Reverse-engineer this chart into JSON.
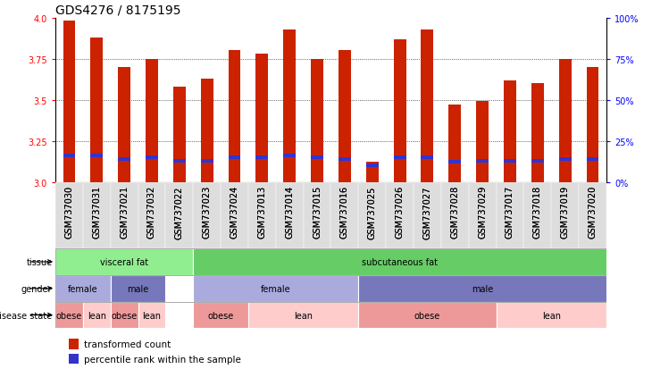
{
  "title": "GDS4276 / 8175195",
  "samples": [
    "GSM737030",
    "GSM737031",
    "GSM737021",
    "GSM737032",
    "GSM737022",
    "GSM737023",
    "GSM737024",
    "GSM737013",
    "GSM737014",
    "GSM737015",
    "GSM737016",
    "GSM737025",
    "GSM737026",
    "GSM737027",
    "GSM737028",
    "GSM737029",
    "GSM737017",
    "GSM737018",
    "GSM737019",
    "GSM737020"
  ],
  "bar_heights": [
    3.98,
    3.88,
    3.7,
    3.75,
    3.58,
    3.63,
    3.8,
    3.78,
    3.93,
    3.75,
    3.8,
    3.12,
    3.87,
    3.93,
    3.47,
    3.49,
    3.62,
    3.6,
    3.75,
    3.7
  ],
  "blue_markers": [
    3.16,
    3.16,
    3.14,
    3.15,
    3.13,
    3.13,
    3.15,
    3.15,
    3.16,
    3.15,
    3.14,
    3.1,
    3.15,
    3.15,
    3.12,
    3.13,
    3.13,
    3.13,
    3.14,
    3.14
  ],
  "ymin": 3.0,
  "ymax": 4.0,
  "yticks": [
    3.0,
    3.25,
    3.5,
    3.75,
    4.0
  ],
  "right_yticks": [
    0,
    25,
    50,
    75,
    100
  ],
  "right_yticklabels": [
    "0%",
    "25%",
    "50%",
    "75%",
    "100%"
  ],
  "bar_color": "#cc2200",
  "blue_color": "#3333cc",
  "bar_width": 0.45,
  "tissue_row": {
    "groups": [
      {
        "label": "visceral fat",
        "start": 0,
        "end": 4,
        "color": "#90ee90"
      },
      {
        "label": "subcutaneous fat",
        "start": 5,
        "end": 19,
        "color": "#66cc66"
      }
    ]
  },
  "gender_row": {
    "groups": [
      {
        "label": "female",
        "start": 0,
        "end": 1,
        "color": "#aaaadd"
      },
      {
        "label": "male",
        "start": 2,
        "end": 3,
        "color": "#7777bb"
      },
      {
        "label": "female",
        "start": 5,
        "end": 10,
        "color": "#aaaadd"
      },
      {
        "label": "male",
        "start": 11,
        "end": 19,
        "color": "#7777bb"
      }
    ]
  },
  "disease_row": {
    "groups": [
      {
        "label": "obese",
        "start": 0,
        "end": 0,
        "color": "#ee9999"
      },
      {
        "label": "lean",
        "start": 1,
        "end": 1,
        "color": "#ffcccc"
      },
      {
        "label": "obese",
        "start": 2,
        "end": 2,
        "color": "#ee9999"
      },
      {
        "label": "lean",
        "start": 3,
        "end": 3,
        "color": "#ffcccc"
      },
      {
        "label": "obese",
        "start": 5,
        "end": 6,
        "color": "#ee9999"
      },
      {
        "label": "lean",
        "start": 7,
        "end": 10,
        "color": "#ffcccc"
      },
      {
        "label": "obese",
        "start": 11,
        "end": 15,
        "color": "#ee9999"
      },
      {
        "label": "lean",
        "start": 16,
        "end": 19,
        "color": "#ffcccc"
      }
    ]
  },
  "legend": [
    {
      "label": "transformed count",
      "color": "#cc2200"
    },
    {
      "label": "percentile rank within the sample",
      "color": "#3333cc"
    }
  ],
  "title_fontsize": 10,
  "tick_fontsize": 7,
  "label_fontsize": 7,
  "annot_fontsize": 7
}
